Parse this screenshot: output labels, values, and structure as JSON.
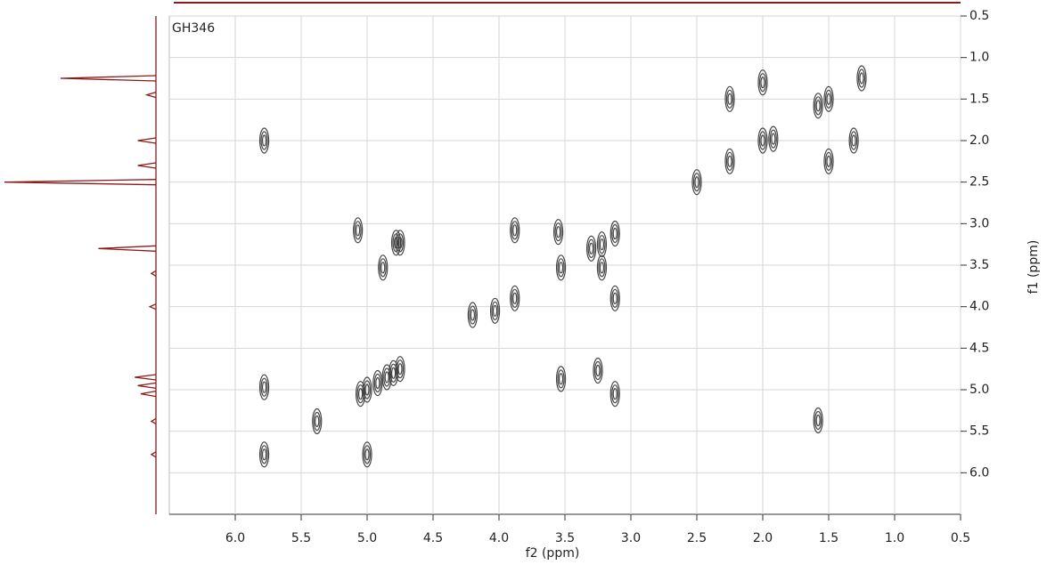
{
  "chart_data": {
    "type": "contour",
    "title": "GH346",
    "x_label": "f2 (ppm)",
    "y_label": "f1 (ppm)",
    "xlim": [
      6.5,
      0.5
    ],
    "ylim": [
      0.5,
      6.5
    ],
    "xticks": [
      {
        "value": 6,
        "label": "6.0"
      },
      5.5,
      {
        "value": 5,
        "label": "5.0"
      },
      4.5,
      {
        "value": 4,
        "label": "4.0"
      },
      3.5,
      {
        "value": 3,
        "label": "3.0"
      },
      2.5,
      {
        "value": 2,
        "label": "2.0"
      },
      1.5,
      {
        "value": 1,
        "label": "1.0"
      },
      0.5
    ],
    "yticks": [
      0.5,
      {
        "value": 1,
        "label": "1.0"
      },
      1.5,
      {
        "value": 2,
        "label": "2.0"
      },
      2.5,
      {
        "value": 3,
        "label": "3.0"
      },
      3.5,
      {
        "value": 4,
        "label": "4.0"
      },
      4.5,
      {
        "value": 5,
        "label": "5.0"
      },
      5.5,
      {
        "value": 6,
        "label": "6.0"
      }
    ],
    "grid": true,
    "color": "#444444",
    "peaks": {
      "x": [
        1.25,
        1.5,
        1.58,
        2.0,
        2.0,
        2.25,
        2.25,
        2.5,
        1.5,
        1.31,
        1.92,
        5.78,
        5.78,
        5.78,
        5.07,
        4.88,
        4.78,
        4.75,
        4.2,
        4.03,
        3.88,
        3.88,
        3.53,
        3.55,
        3.3,
        3.22,
        3.12,
        3.12,
        3.22,
        5.05,
        5.0,
        4.92,
        4.85,
        4.8,
        4.75,
        5.38,
        5.0,
        3.53,
        3.25,
        3.12,
        1.58
      ],
      "y": [
        1.25,
        1.5,
        1.58,
        1.3,
        2.0,
        1.5,
        2.25,
        2.5,
        2.25,
        2.0,
        1.98,
        2.0,
        4.97,
        5.78,
        3.08,
        3.53,
        3.23,
        3.23,
        4.1,
        4.05,
        3.9,
        3.08,
        3.53,
        3.1,
        3.3,
        3.25,
        3.12,
        3.9,
        3.53,
        5.05,
        5.0,
        4.92,
        4.85,
        4.8,
        4.75,
        5.38,
        5.78,
        4.87,
        4.77,
        5.05,
        5.37
      ]
    },
    "projection": {
      "color": "#8b1a1a",
      "ppm": [
        1.25,
        1.45,
        2.0,
        2.3,
        2.5,
        3.3,
        3.6,
        4.0,
        4.85,
        4.95,
        5.05,
        5.38,
        5.78
      ],
      "heights": [
        0.63,
        0.06,
        0.12,
        0.12,
        1.0,
        0.38,
        0.03,
        0.04,
        0.14,
        0.12,
        0.1,
        0.03,
        0.03
      ]
    }
  }
}
